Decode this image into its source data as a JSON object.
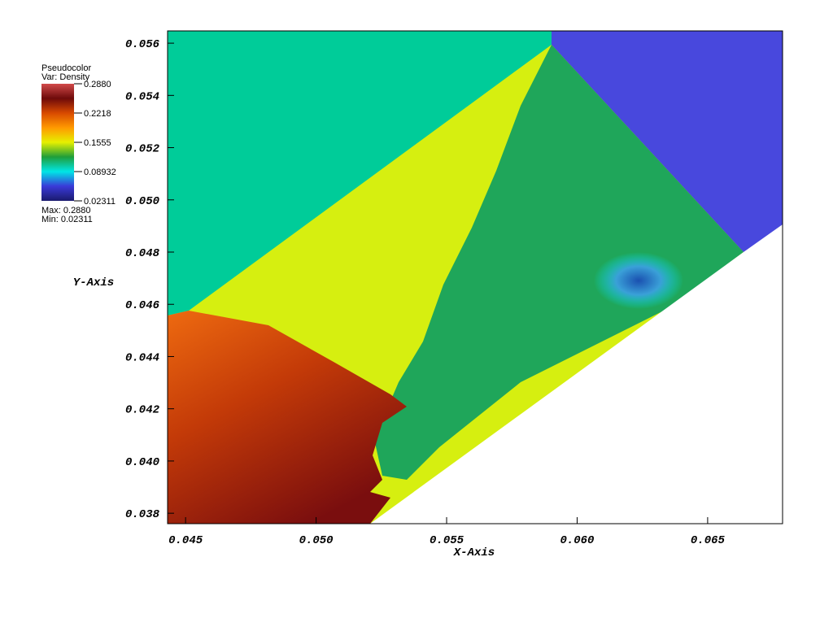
{
  "chart_data": {
    "type": "pseudocolor",
    "xlabel": "X-Axis",
    "ylabel": "Y-Axis",
    "xlim": [
      0.04431,
      0.06787
    ],
    "ylim": [
      0.0376,
      0.05647
    ],
    "xticks": [
      0.045,
      {
        "value": 0.05,
        "label": "0.050"
      },
      0.055,
      {
        "value": 0.06,
        "label": "0.060"
      },
      0.065
    ],
    "yticks": [
      0.038,
      {
        "value": 0.04,
        "label": "0.040"
      },
      0.042,
      0.044,
      0.046,
      0.048,
      {
        "value": 0.05,
        "label": "0.050"
      },
      0.052,
      0.054,
      0.056
    ],
    "legend": {
      "title": "Pseudocolor",
      "variable": "Var: Density",
      "clim": [
        0.02311,
        0.288
      ],
      "ticks": [
        {
          "value": 0.288,
          "label": "0.2880"
        },
        0.2218,
        0.1555,
        0.08932,
        0.02311
      ],
      "max_text": "Max: 0.2880",
      "min_text": "Min: 0.02311",
      "colors": [
        "#1a1a6e",
        "#3a3ad8",
        "#00e6e6",
        "#1f9e3a",
        "#e6f000",
        "#ff9900",
        "#d84a00",
        "#6e0a0a",
        "#d24a4a"
      ]
    }
  }
}
